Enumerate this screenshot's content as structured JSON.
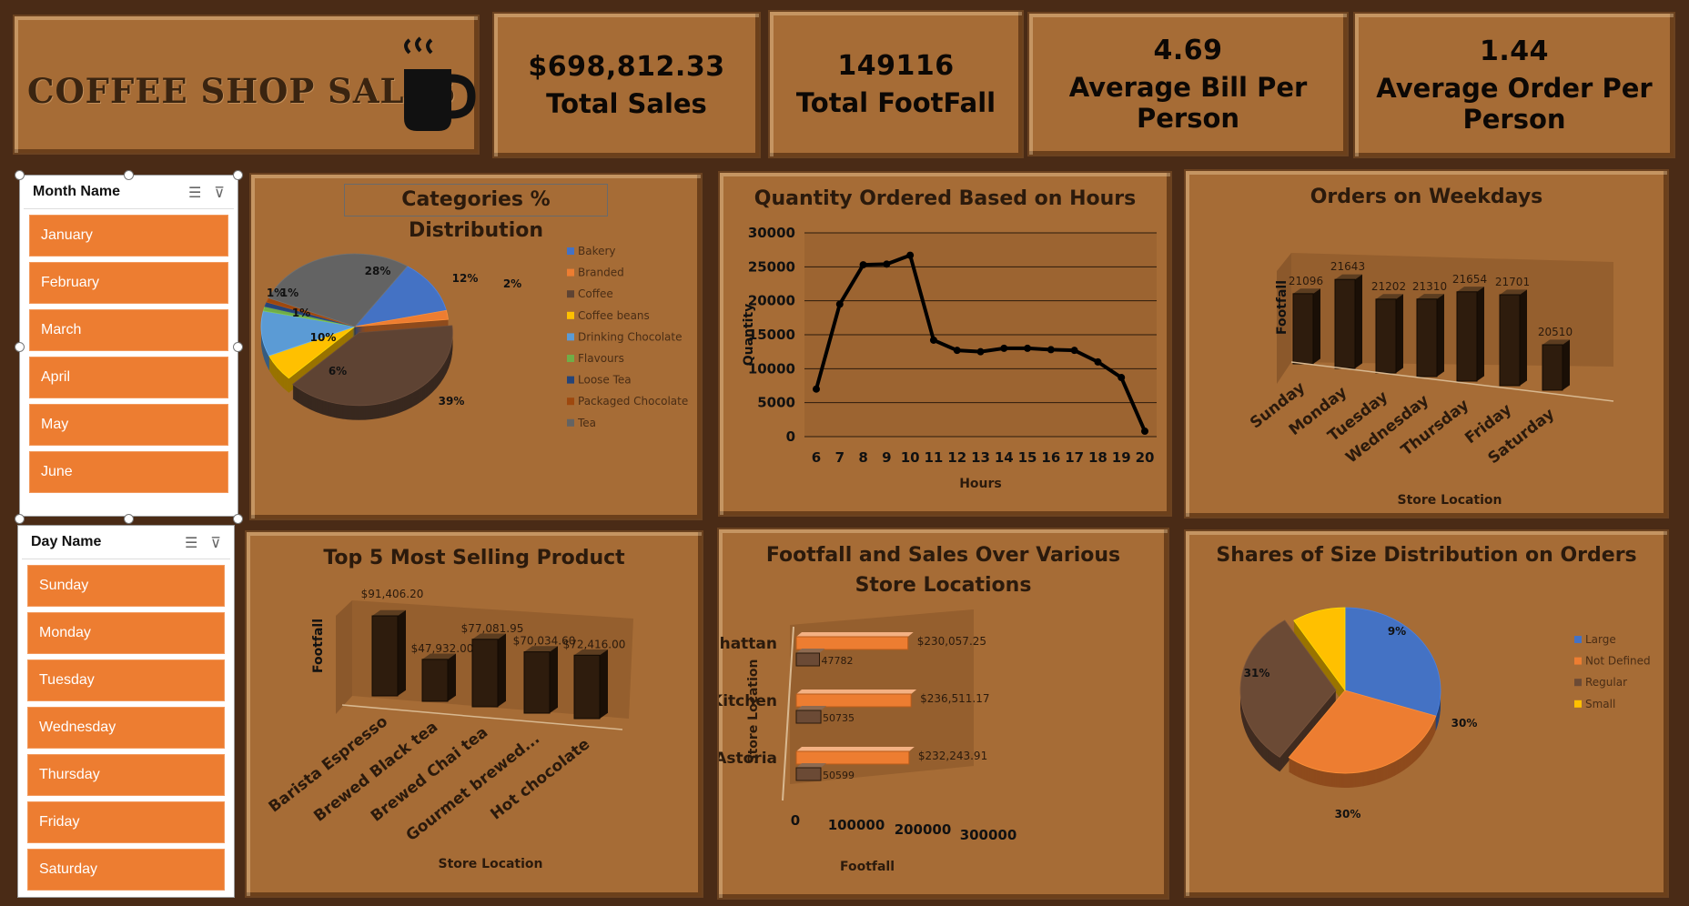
{
  "header": {
    "title": "COFFEE SHOP SALES"
  },
  "kpis": [
    {
      "value": "$698,812.33",
      "label": "Total Sales"
    },
    {
      "value": "149116",
      "label": "Total FootFall"
    },
    {
      "value": "4.69",
      "label": "Average Bill Per Person"
    },
    {
      "value": "1.44",
      "label": "Average Order Per Person"
    }
  ],
  "slicers": {
    "month": {
      "title": "Month Name",
      "items": [
        "January",
        "February",
        "March",
        "April",
        "May",
        "June"
      ]
    },
    "day": {
      "title": "Day Name",
      "items": [
        "Sunday",
        "Monday",
        "Tuesday",
        "Wednesday",
        "Thursday",
        "Friday",
        "Saturday"
      ]
    }
  },
  "chart_data": [
    {
      "id": "categories",
      "type": "pie",
      "title": "Categories % Distribution",
      "categories": [
        "Bakery",
        "Branded",
        "Coffee",
        "Coffee beans",
        "Drinking Chocolate",
        "Flavours",
        "Loose Tea",
        "Packaged Chocolate",
        "Tea"
      ],
      "values": [
        12,
        2,
        39,
        6,
        10,
        1,
        1,
        1,
        28
      ],
      "labels": [
        "12%",
        "2%",
        "39%",
        "6%",
        "10%",
        "1%",
        "1%",
        "1%",
        "28%"
      ],
      "colors": [
        "#4472c4",
        "#ed7d31",
        "#5e4333",
        "#ffc000",
        "#5b9bd5",
        "#70ad47",
        "#264478",
        "#9e480e",
        "#636363"
      ],
      "legend": "right"
    },
    {
      "id": "hours",
      "type": "line",
      "title": "Quantity Ordered Based on Hours",
      "xlabel": "Hours",
      "ylabel": "Quantity",
      "x": [
        6,
        7,
        8,
        9,
        10,
        11,
        12,
        13,
        14,
        15,
        16,
        17,
        18,
        19,
        20
      ],
      "values": [
        7000,
        19500,
        25300,
        25400,
        26700,
        14200,
        12700,
        12500,
        13000,
        13000,
        12800,
        12700,
        11000,
        8700,
        800
      ],
      "ylim": [
        0,
        30000
      ],
      "yticks": [
        0,
        5000,
        10000,
        15000,
        20000,
        25000,
        30000
      ],
      "grid": true
    },
    {
      "id": "weekdays",
      "type": "bar",
      "title": "Orders on Weekdays",
      "xlabel": "Store Location",
      "ylabel": "Footfall",
      "categories": [
        "Sunday",
        "Monday",
        "Tuesday",
        "Wednesday",
        "Thursday",
        "Friday",
        "Saturday"
      ],
      "values": [
        21096,
        21643,
        21202,
        21310,
        21654,
        21701,
        20510
      ],
      "labels": [
        "21096",
        "21643",
        "21202",
        "21310",
        "21654",
        "21701",
        "20510"
      ]
    },
    {
      "id": "top5",
      "type": "bar",
      "title": "Top 5 Most Selling Product",
      "xlabel": "Store Location",
      "ylabel": "Footfall",
      "categories": [
        "Barista Espresso",
        "Brewed Black tea",
        "Brewed Chai tea",
        "Gourmet brewed...",
        "Hot chocolate"
      ],
      "values": [
        91406.2,
        47932.0,
        77081.95,
        70034.6,
        72416.0
      ],
      "labels": [
        "$91,406.20",
        "$47,932.00",
        "$77,081.95",
        "$70,034.60",
        "$72,416.00"
      ]
    },
    {
      "id": "stores",
      "type": "bar",
      "title_line1": "Footfall and Sales Over Various",
      "title_line2": "Store Locations",
      "xlabel": "Footfall",
      "ylabel": "Store Location",
      "categories": [
        "Lower Manhattan",
        "Hell's Kitchen",
        "Astoria"
      ],
      "series": [
        {
          "values": [
            230057.25,
            236511.17,
            232243.91
          ],
          "labels": [
            "$230,057.25",
            "$236,511.17",
            "$232,243.91"
          ],
          "color": "#ed7d31"
        },
        {
          "values": [
            47782,
            50735,
            50599
          ],
          "labels": [
            "47782",
            "50735",
            "50599"
          ],
          "color": "#6b4a35"
        }
      ],
      "xticks": [
        0,
        100000,
        200000,
        300000
      ],
      "xlim": [
        0,
        300000
      ]
    },
    {
      "id": "sizes",
      "type": "pie",
      "title": "Shares of Size Distribution on Orders",
      "categories": [
        "Large",
        "Not Defined",
        "Regular",
        "Small"
      ],
      "values": [
        30,
        30,
        31,
        9
      ],
      "labels": [
        "30%",
        "30%",
        "31%",
        "9%"
      ],
      "colors": [
        "#4472c4",
        "#ed7d31",
        "#6b4a35",
        "#ffc000"
      ],
      "legend": "right"
    }
  ]
}
